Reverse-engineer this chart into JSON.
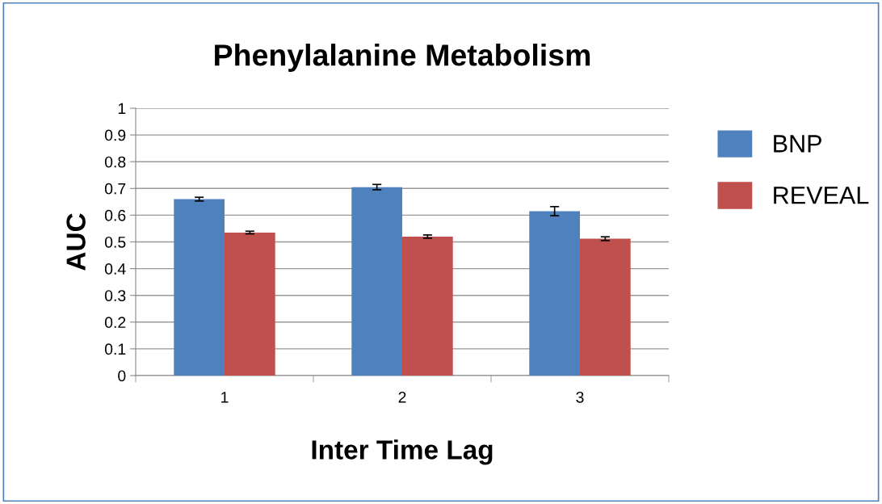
{
  "chart_data": {
    "type": "bar",
    "title": "Phenylalanine Metabolism",
    "xlabel": "Inter Time Lag",
    "ylabel": "AUC",
    "categories": [
      "1",
      "2",
      "3"
    ],
    "series": [
      {
        "name": "BNP",
        "color": "#4f81bd",
        "values": [
          0.66,
          0.705,
          0.615
        ],
        "errors": [
          0.007,
          0.01,
          0.017
        ]
      },
      {
        "name": "REVEAL",
        "color": "#c0504d",
        "values": [
          0.535,
          0.52,
          0.512
        ],
        "errors": [
          0.005,
          0.006,
          0.007
        ]
      }
    ],
    "ylim": [
      0,
      1
    ],
    "yticks": [
      0,
      0.1,
      0.2,
      0.3,
      0.4,
      0.5,
      0.6,
      0.7,
      0.8,
      0.9,
      1
    ],
    "grid": "y",
    "legend": "right"
  }
}
